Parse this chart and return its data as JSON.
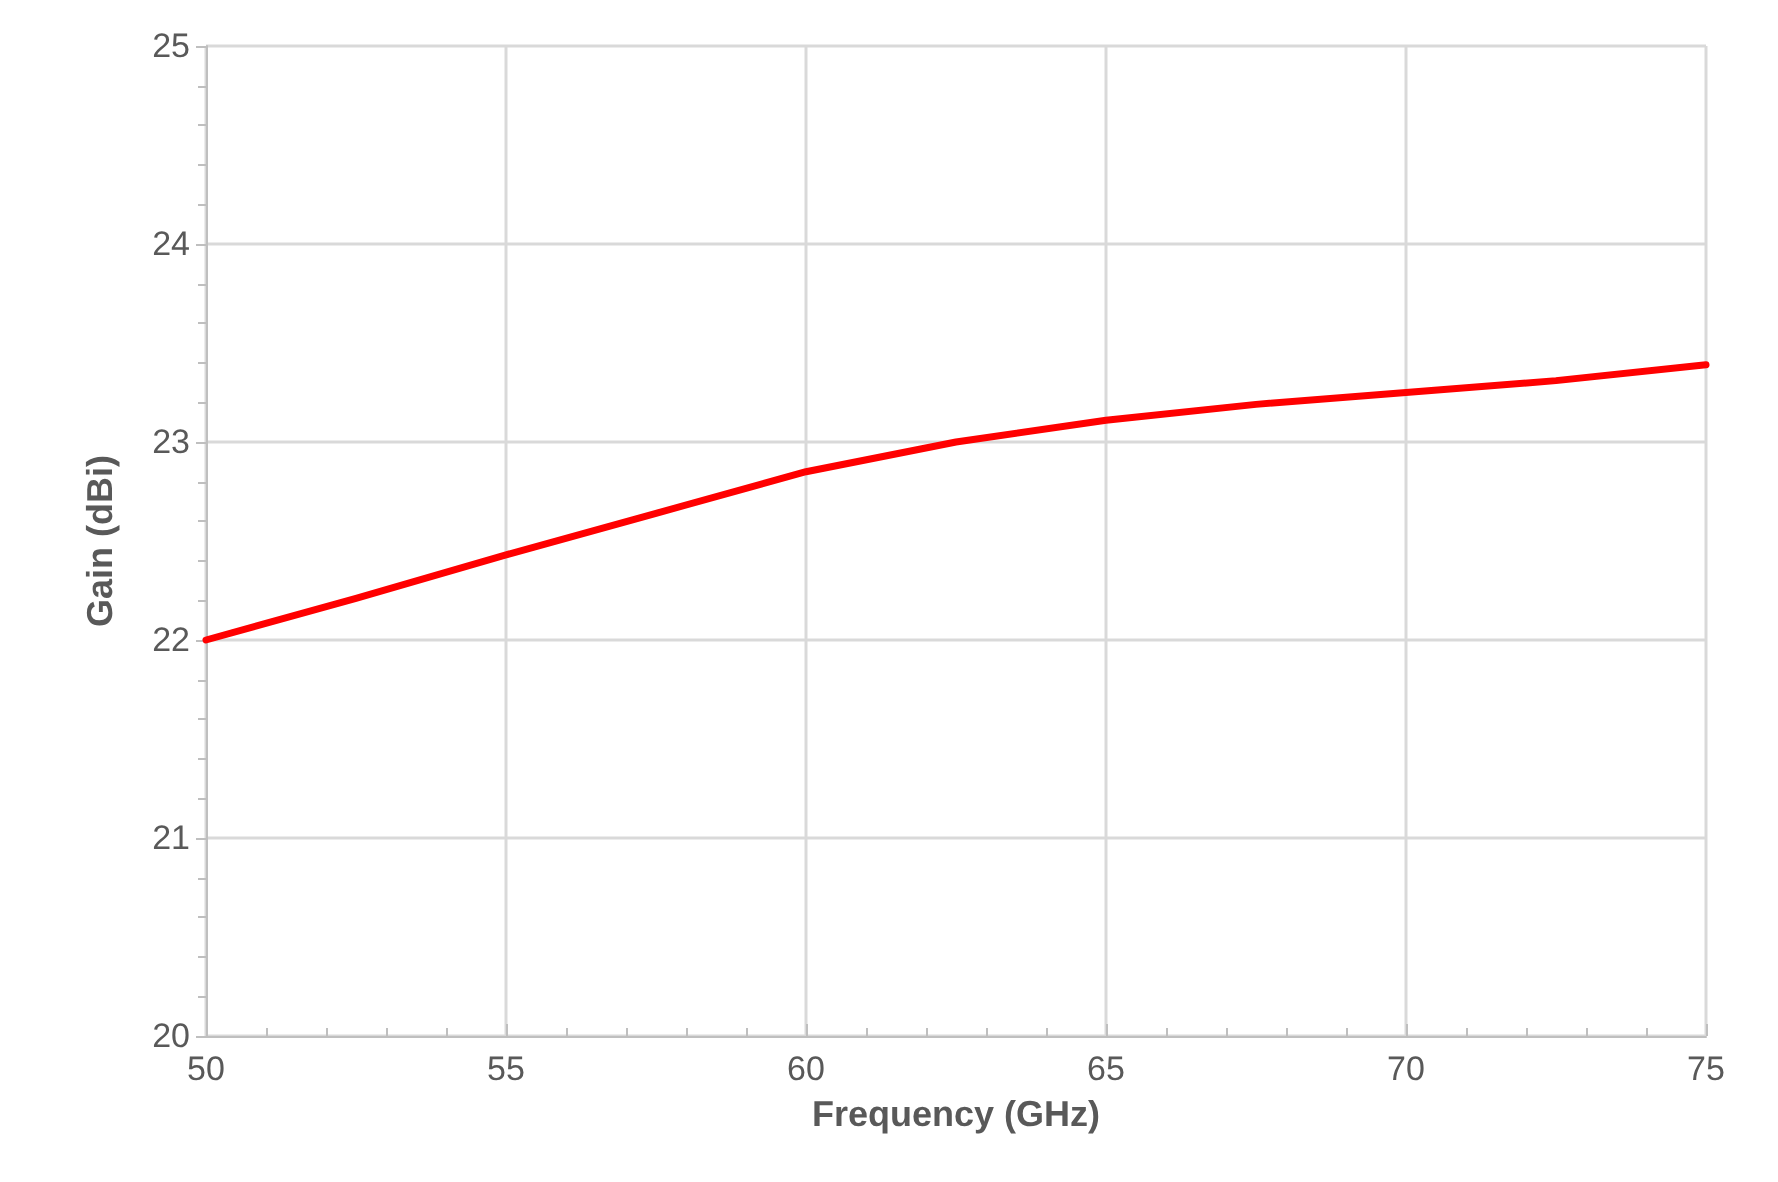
{
  "chart_data": {
    "type": "line",
    "xlabel": "Frequency (GHz)",
    "ylabel": "Gain (dBi)",
    "x": [
      50,
      52.5,
      55,
      57.5,
      60,
      62.5,
      65,
      67.5,
      70,
      72.5,
      75
    ],
    "series": [
      {
        "color": "#ff0000",
        "values": [
          22.0,
          22.21,
          22.43,
          22.64,
          22.85,
          23.0,
          23.11,
          23.19,
          23.25,
          23.31,
          23.39
        ]
      }
    ],
    "xlim": [
      50,
      75
    ],
    "xticks": [
      50,
      55,
      60,
      65,
      70,
      75
    ],
    "ylim": [
      20,
      25
    ],
    "yticks": [
      20,
      21,
      22,
      23,
      24,
      25
    ],
    "grid": true,
    "marker": "none",
    "line_style": "solid"
  }
}
